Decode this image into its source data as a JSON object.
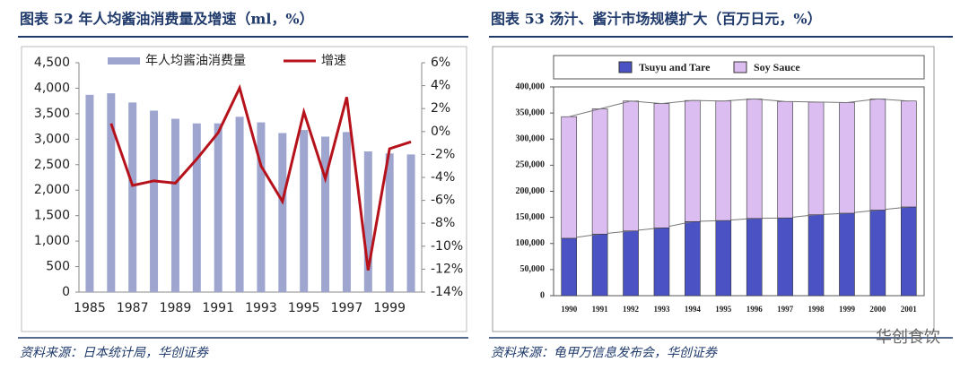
{
  "chart_data": [
    {
      "type": "bar_line",
      "title": "图表 52   年人均酱油消费量及增速（ml，%）",
      "source": "资料来源：日本统计局，华创证券",
      "categories": [
        "1985",
        null,
        "1987",
        null,
        "1989",
        null,
        "1991",
        null,
        "1993",
        null,
        "1995",
        null,
        "1997",
        null,
        "1999",
        null
      ],
      "series": [
        {
          "name": "年人均酱油消费量",
          "color": "#9ea6cf",
          "values": [
            3870,
            3900,
            3720,
            3560,
            3400,
            3310,
            3310,
            3440,
            3330,
            3120,
            3180,
            3050,
            3140,
            2760,
            2720,
            2700
          ]
        },
        {
          "name": "增速",
          "color": "#b5121b",
          "axis": "y2",
          "values": [
            null,
            0.7,
            -4.7,
            -4.3,
            -4.5,
            -2.4,
            -0.1,
            3.8,
            -3.0,
            -6.1,
            1.7,
            -4.1,
            3.0,
            -12.1,
            -1.5,
            -0.9
          ]
        }
      ],
      "ylim": [
        0,
        4500
      ],
      "yticks": [
        0,
        500,
        {
          "value": 1000,
          "label": "1,000"
        },
        {
          "value": 1500,
          "label": "1,500"
        },
        {
          "value": 2000,
          "label": "2,000"
        },
        {
          "value": 2500,
          "label": "2,500"
        },
        {
          "value": 3000,
          "label": "3,000"
        },
        {
          "value": 3500,
          "label": "3,500"
        },
        {
          "value": 4000,
          "label": "4,000"
        },
        {
          "value": 4500,
          "label": "4,500"
        }
      ],
      "y2lim": [
        -14,
        6
      ],
      "y2ticks": [
        {
          "value": -14,
          "label": "-14%"
        },
        {
          "value": -12,
          "label": "-12%"
        },
        {
          "value": -10,
          "label": "-10%"
        },
        {
          "value": -8,
          "label": "-8%"
        },
        {
          "value": -6,
          "label": "-6%"
        },
        {
          "value": -4,
          "label": "-4%"
        },
        {
          "value": -2,
          "label": "-2%"
        },
        {
          "value": 0,
          "label": "0%"
        },
        {
          "value": 2,
          "label": "2%"
        },
        {
          "value": 4,
          "label": "4%"
        },
        {
          "value": 6,
          "label": "6%"
        }
      ],
      "legend": "top"
    },
    {
      "type": "stacked_bar",
      "title": "图表 53   汤汁、酱汁市场规模扩大（百万日元，%）",
      "source": "资料来源：龟甲万信息发布会，华创证券",
      "categories": [
        "1990",
        "1991",
        "1992",
        "1993",
        "1994",
        "1995",
        "1996",
        "1997",
        "1998",
        "1999",
        "2000",
        "2001"
      ],
      "series": [
        {
          "name": "Tsuyu and Tare",
          "color": "#4b53c4",
          "values": [
            110000,
            118000,
            124000,
            130000,
            142000,
            144000,
            148000,
            149000,
            155000,
            158000,
            164000,
            170000
          ]
        },
        {
          "name": "Soy Sauce",
          "color": "#dcbdf2",
          "values": [
            233000,
            240000,
            249000,
            238000,
            232000,
            229000,
            229000,
            223000,
            216000,
            212000,
            213000,
            203000
          ]
        }
      ],
      "ylim": [
        0,
        400000
      ],
      "yticks": [
        0,
        {
          "value": 50000,
          "label": "50,000"
        },
        {
          "value": 100000,
          "label": "100,000"
        },
        {
          "value": 150000,
          "label": "150,000"
        },
        {
          "value": 200000,
          "label": "200,000"
        },
        {
          "value": 250000,
          "label": "250,000"
        },
        {
          "value": 300000,
          "label": "300,000"
        },
        {
          "value": 350000,
          "label": "350,000"
        },
        {
          "value": 400000,
          "label": "400,000"
        }
      ],
      "legend": "top"
    }
  ],
  "watermark": "华创食饮"
}
